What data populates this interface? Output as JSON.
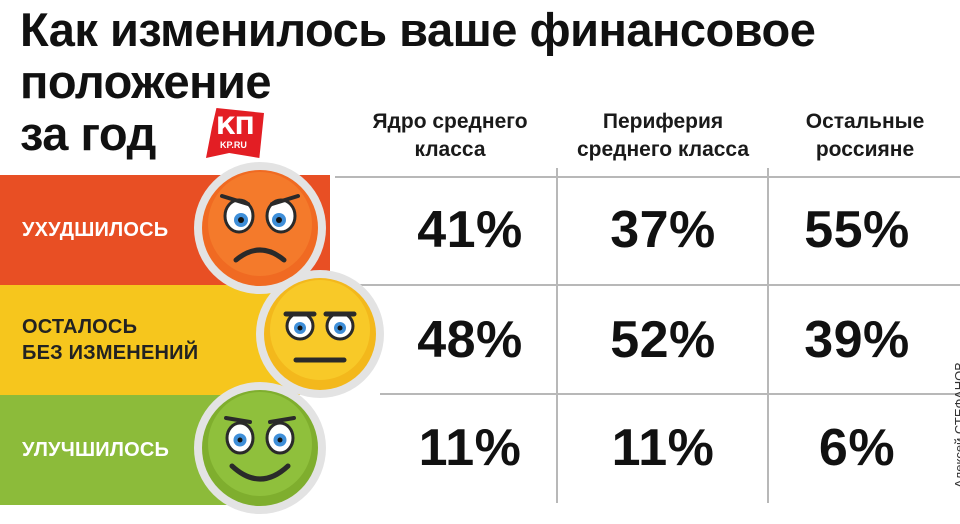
{
  "title_lines": [
    "Как изменилось ваше финансовое",
    "положение",
    "за год"
  ],
  "logo": {
    "main": "КП",
    "sub": "KP.RU",
    "color": "#e31e24"
  },
  "credit": "Алексей СТЕФАНОВ",
  "colors": {
    "worse": "#e84f24",
    "same": "#f6c61d",
    "better": "#8cbb3a"
  },
  "icons": [
    "sad-face-icon",
    "neutral-face-icon",
    "smile-face-icon"
  ],
  "chart_data": {
    "type": "table",
    "title": "Как изменилось ваше финансовое положение за год",
    "columns": [
      {
        "lines": [
          "Ядро среднего",
          "класса"
        ]
      },
      {
        "lines": [
          "Периферия",
          "среднего класса"
        ]
      },
      {
        "lines": [
          "Остальные",
          "россияне"
        ]
      }
    ],
    "rows": [
      {
        "label_lines": [
          "УХУДШИЛОСЬ"
        ],
        "values": [
          "41%",
          "37%",
          "55%"
        ]
      },
      {
        "label_lines": [
          "ОСТАЛОСЬ",
          "БЕЗ ИЗМЕНЕНИЙ"
        ],
        "values": [
          "48%",
          "52%",
          "39%"
        ]
      },
      {
        "label_lines": [
          "УЛУЧШИЛОСЬ"
        ],
        "values": [
          "11%",
          "11%",
          "6%"
        ]
      }
    ]
  }
}
